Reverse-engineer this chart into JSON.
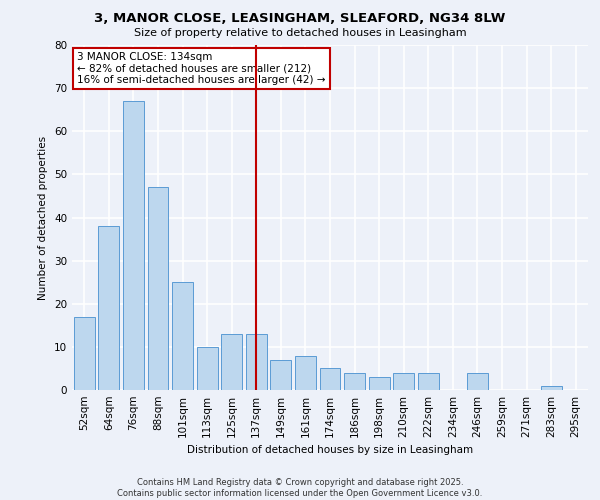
{
  "title": "3, MANOR CLOSE, LEASINGHAM, SLEAFORD, NG34 8LW",
  "subtitle": "Size of property relative to detached houses in Leasingham",
  "xlabel": "Distribution of detached houses by size in Leasingham",
  "ylabel": "Number of detached properties",
  "categories": [
    "52sqm",
    "64sqm",
    "76sqm",
    "88sqm",
    "101sqm",
    "113sqm",
    "125sqm",
    "137sqm",
    "149sqm",
    "161sqm",
    "174sqm",
    "186sqm",
    "198sqm",
    "210sqm",
    "222sqm",
    "234sqm",
    "246sqm",
    "259sqm",
    "271sqm",
    "283sqm",
    "295sqm"
  ],
  "values": [
    17,
    38,
    67,
    47,
    25,
    10,
    13,
    13,
    7,
    8,
    5,
    4,
    3,
    4,
    4,
    0,
    4,
    0,
    0,
    1,
    0
  ],
  "bar_color": "#bdd7ee",
  "bar_edge_color": "#5b9bd5",
  "vline_x": 7,
  "vline_color": "#c00000",
  "annotation_line1": "3 MANOR CLOSE: 134sqm",
  "annotation_line2": "← 82% of detached houses are smaller (212)",
  "annotation_line3": "16% of semi-detached houses are larger (42) →",
  "annotation_box_color": "#c00000",
  "ylim": [
    0,
    80
  ],
  "yticks": [
    0,
    10,
    20,
    30,
    40,
    50,
    60,
    70,
    80
  ],
  "background_color": "#edf1f9",
  "grid_color": "#ffffff",
  "footer_line1": "Contains HM Land Registry data © Crown copyright and database right 2025.",
  "footer_line2": "Contains public sector information licensed under the Open Government Licence v3.0."
}
